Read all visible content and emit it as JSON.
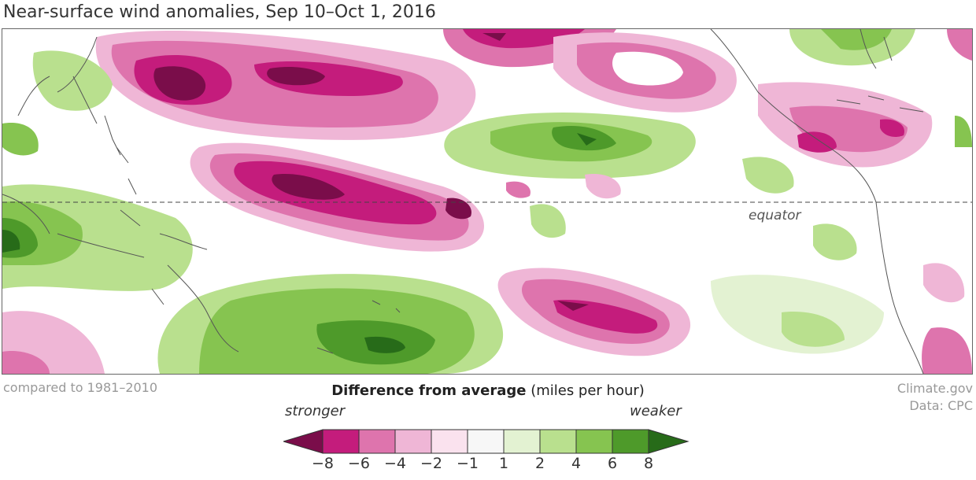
{
  "title": "Near-surface wind anomalies, Sep 10–Oct 1, 2016",
  "map": {
    "equator_label": "equator",
    "palette": {
      "m8": "#7a0d4a",
      "m6": "#c41c7c",
      "m4": "#de74ad",
      "m2": "#efb6d6",
      "m1": "#fae2ee",
      "p1": "#e3f2d2",
      "p2": "#b9e08e",
      "p4": "#86c450",
      "p6": "#4e9a2a",
      "p8": "#276b19"
    },
    "land_color": "#555555"
  },
  "footer": {
    "baseline": "compared to 1981–2010",
    "credit": "Climate.gov",
    "data_source": "Data: CPC"
  },
  "legend": {
    "title_bold": "Difference from average",
    "title_unit": "(miles per hour)",
    "left_label": "stronger",
    "right_label": "weaker",
    "ticks": [
      "−8",
      "−6",
      "−4",
      "−2",
      "−1",
      "1",
      "2",
      "4",
      "6",
      "8"
    ],
    "colors": [
      "#7a0d4a",
      "#c41c7c",
      "#de74ad",
      "#efb6d6",
      "#fae2ee",
      "#f7f7f7",
      "#e3f2d2",
      "#b9e08e",
      "#86c450",
      "#4e9a2a",
      "#276b19"
    ]
  }
}
